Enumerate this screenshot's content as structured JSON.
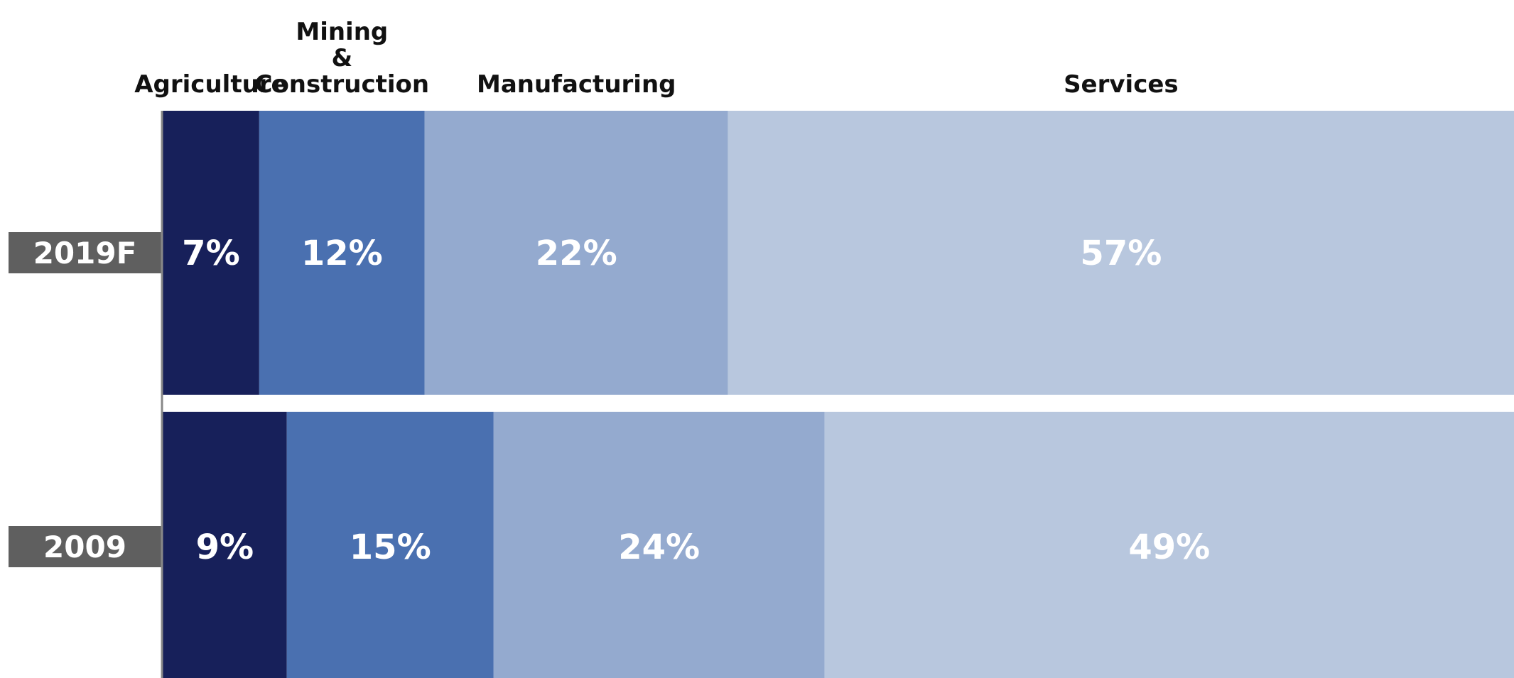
{
  "chart_data": {
    "type": "bar",
    "orientation": "horizontal",
    "stacked": true,
    "categories": [
      "2019F",
      "2009"
    ],
    "series": [
      {
        "name": "Agriculture",
        "values": [
          7,
          9
        ],
        "labels": [
          "7%",
          "9%"
        ],
        "color": "#17205a"
      },
      {
        "name": "Mining\n&\nConstruction",
        "values": [
          12,
          15
        ],
        "labels": [
          "12%",
          "15%"
        ],
        "color": "#4a70b0"
      },
      {
        "name": "Manufacturing",
        "values": [
          22,
          24
        ],
        "labels": [
          "22%",
          "24%"
        ],
        "color": "#94aacf"
      },
      {
        "name": "Services",
        "values": [
          57,
          49
        ],
        "labels": [
          "57%",
          "49%"
        ],
        "color": "#b8c7de"
      }
    ],
    "label_color": "#ffffff",
    "row_label_bg": "#5f5f5f",
    "axis_color": "#888888",
    "legend": "top"
  }
}
